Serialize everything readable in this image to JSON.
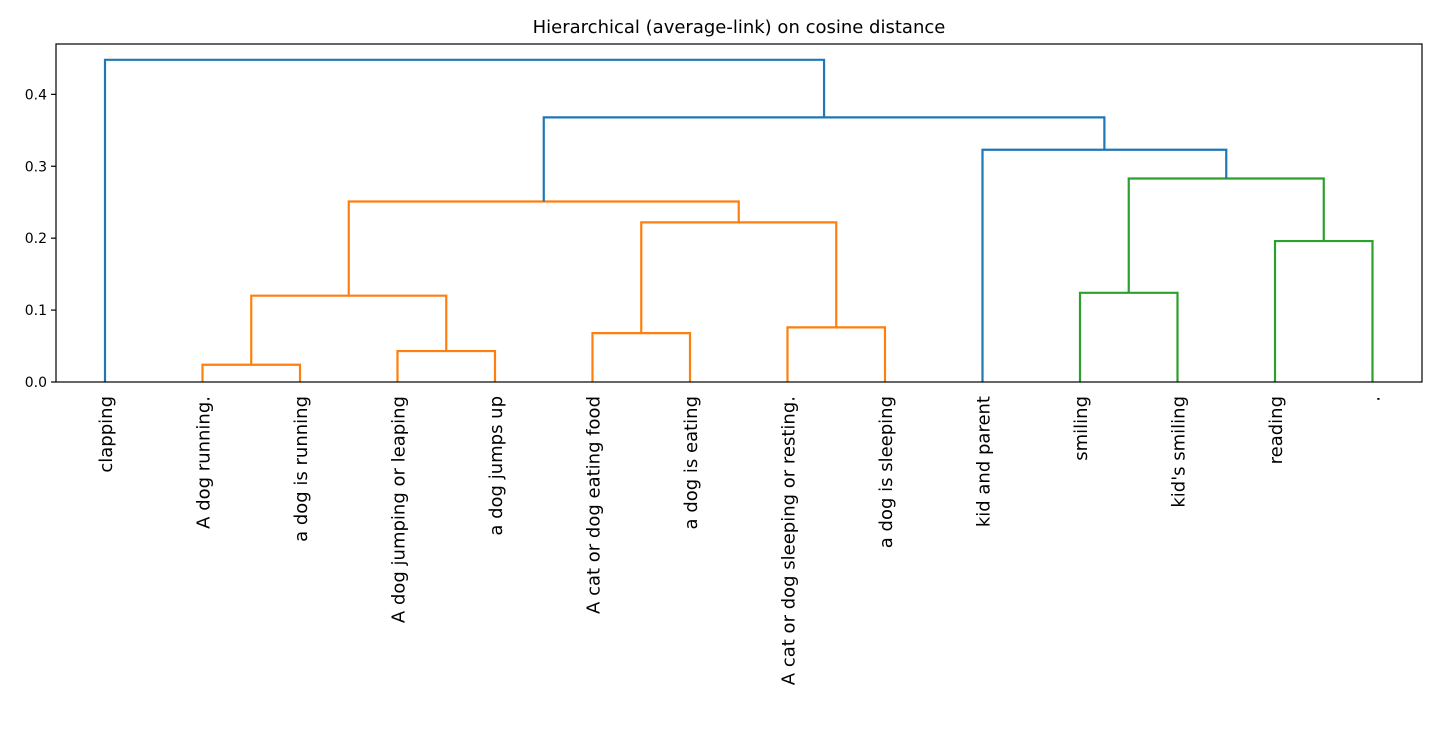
{
  "chart_data": {
    "type": "dendrogram",
    "title": "Hierarchical (average-link) on cosine distance",
    "xlabel": "",
    "ylabel": "",
    "ylim": [
      0,
      0.47
    ],
    "yticks": [
      0.0,
      0.1,
      0.2,
      0.3,
      0.4
    ],
    "ytick_labels": [
      "0.0",
      "0.1",
      "0.2",
      "0.3",
      "0.4"
    ],
    "grid": false,
    "colors": {
      "orange": "#ff7f0e",
      "green": "#2ca02c",
      "blue": "#1f77b4"
    },
    "leaves": [
      "clapping",
      "A dog running.",
      "a dog is running",
      "A dog jumping or leaping",
      "a dog jumps up",
      "A cat or dog eating food",
      "a dog is eating",
      "A cat or dog sleeping or resting.",
      "a dog is sleeping",
      "kid and parent",
      "smiling",
      "kid's smiling",
      "reading",
      "."
    ],
    "merges": [
      {
        "id": "m1",
        "left": "leaf:1",
        "right": "leaf:2",
        "height": 0.024,
        "color": "orange"
      },
      {
        "id": "m2",
        "left": "leaf:3",
        "right": "leaf:4",
        "height": 0.043,
        "color": "orange"
      },
      {
        "id": "m3",
        "left": "leaf:5",
        "right": "leaf:6",
        "height": 0.068,
        "color": "orange"
      },
      {
        "id": "m4",
        "left": "leaf:7",
        "right": "leaf:8",
        "height": 0.076,
        "color": "orange"
      },
      {
        "id": "m5",
        "left": "leaf:10",
        "right": "leaf:11",
        "height": 0.124,
        "color": "green"
      },
      {
        "id": "m6",
        "left": "m1",
        "right": "m2",
        "height": 0.12,
        "color": "orange"
      },
      {
        "id": "m7",
        "left": "leaf:12",
        "right": "leaf:13",
        "height": 0.196,
        "color": "green"
      },
      {
        "id": "m8",
        "left": "m3",
        "right": "m4",
        "height": 0.222,
        "color": "orange"
      },
      {
        "id": "m9",
        "left": "m6",
        "right": "m8",
        "height": 0.251,
        "color": "orange"
      },
      {
        "id": "m10",
        "left": "m5",
        "right": "m7",
        "height": 0.283,
        "color": "green"
      },
      {
        "id": "m11",
        "left": "leaf:9",
        "right": "m10",
        "height": 0.323,
        "color": "blue"
      },
      {
        "id": "m12",
        "left": "m9",
        "right": "m11",
        "height": 0.368,
        "color": "blue"
      },
      {
        "id": "m13",
        "left": "leaf:0",
        "right": "m12",
        "height": 0.448,
        "color": "blue"
      }
    ]
  }
}
